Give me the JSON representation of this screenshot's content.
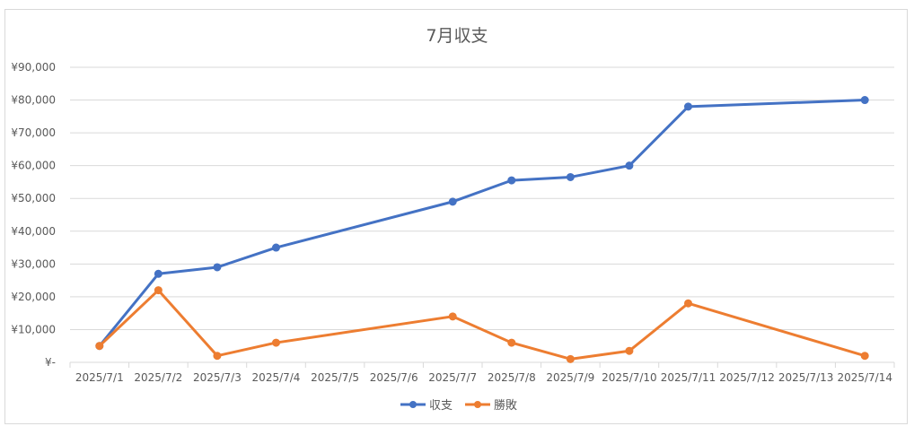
{
  "chart_data": {
    "type": "line",
    "title": "7月収支",
    "categories": [
      "2025/7/1",
      "2025/7/2",
      "2025/7/3",
      "2025/7/4",
      "2025/7/5",
      "2025/7/6",
      "2025/7/7",
      "2025/7/8",
      "2025/7/9",
      "2025/7/10",
      "2025/7/11",
      "2025/7/12",
      "2025/7/13",
      "2025/7/14"
    ],
    "series": [
      {
        "name": "収支",
        "color": "#4472c4",
        "values": [
          5000,
          27000,
          29000,
          35000,
          null,
          null,
          49000,
          55500,
          56500,
          60000,
          78000,
          null,
          null,
          80000
        ]
      },
      {
        "name": "勝敗",
        "color": "#ed7d31",
        "values": [
          5000,
          22000,
          2000,
          6000,
          null,
          null,
          14000,
          6000,
          1000,
          3500,
          18000,
          null,
          null,
          2000
        ]
      }
    ],
    "ylim": [
      0,
      90000
    ],
    "yticks": [
      0,
      10000,
      20000,
      30000,
      40000,
      50000,
      60000,
      70000,
      80000,
      90000
    ],
    "ytick_labels": [
      "¥-",
      "¥10,000",
      "¥20,000",
      "¥30,000",
      "¥40,000",
      "¥50,000",
      "¥60,000",
      "¥70,000",
      "¥80,000",
      "¥90,000"
    ],
    "xlabel": "",
    "ylabel": "",
    "grid": true,
    "gridline_color": "#d9d9d9",
    "legend_position": "bottom"
  }
}
